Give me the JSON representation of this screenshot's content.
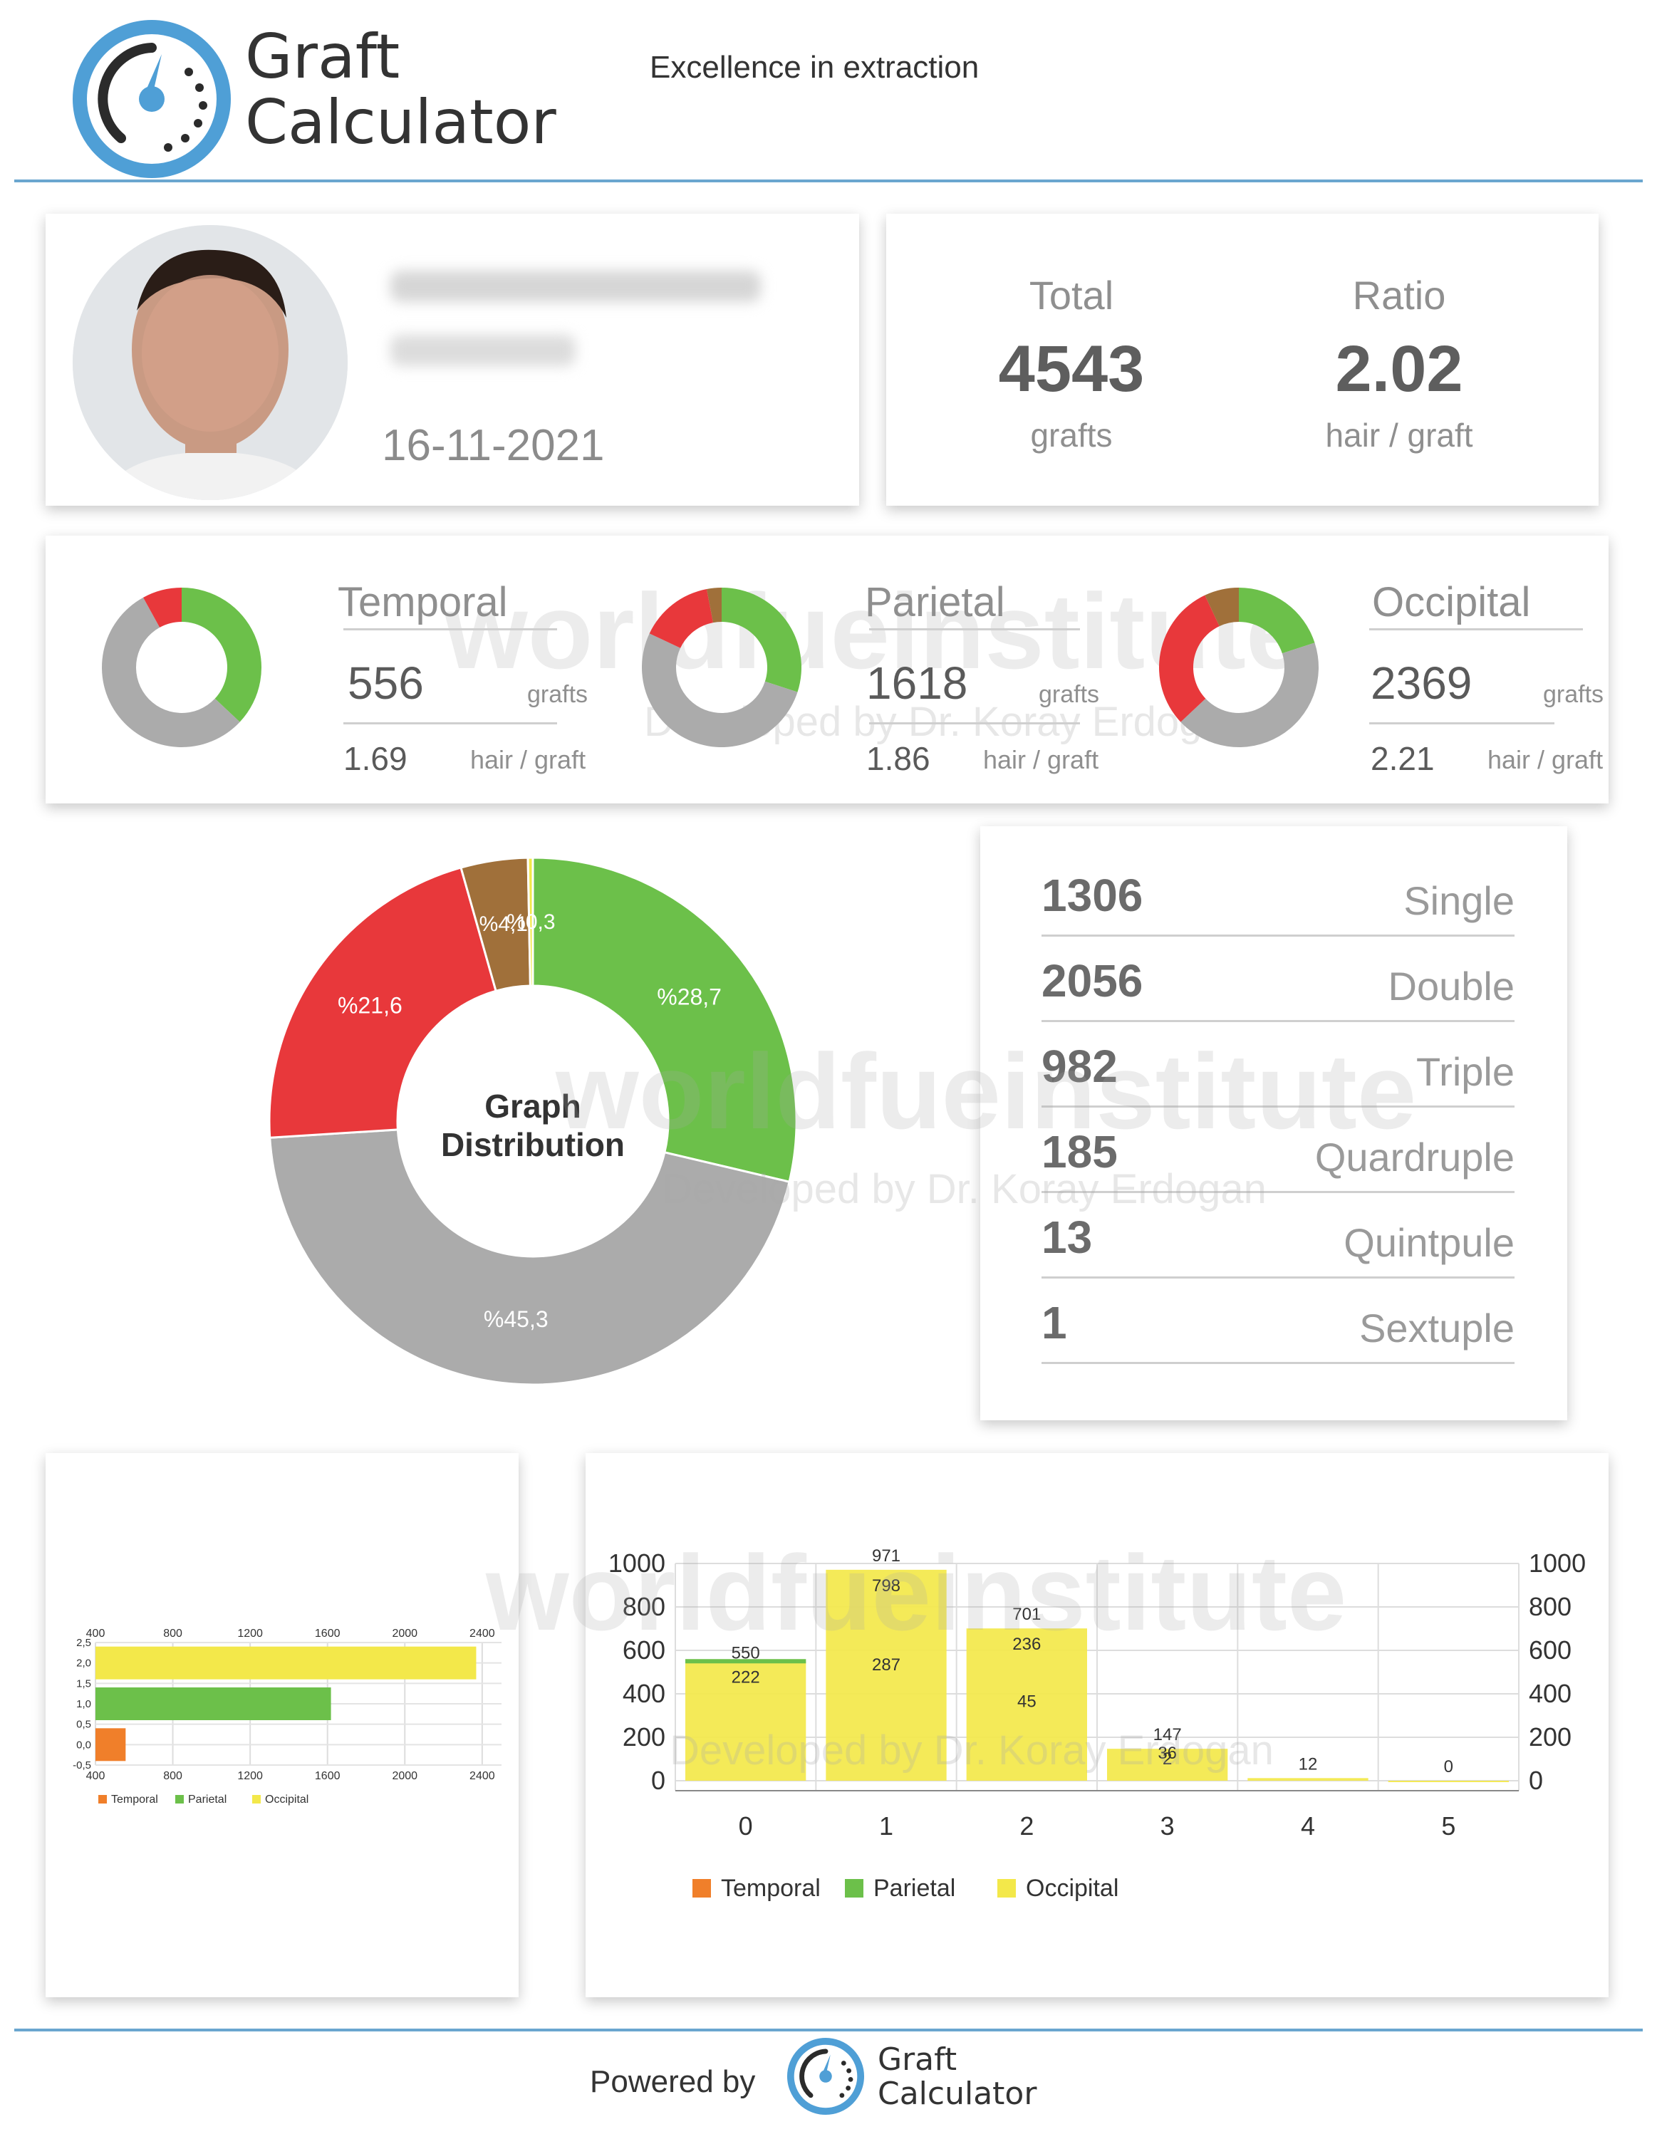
{
  "header": {
    "brand_line1": "Graft",
    "brand_line2": "Calculator",
    "tagline": "Excellence in extraction"
  },
  "patient": {
    "date": "16-11-2021"
  },
  "totals": {
    "total_label": "Total",
    "total_value": "4543",
    "total_unit": "grafts",
    "ratio_label": "Ratio",
    "ratio_value": "2.02",
    "ratio_unit": "hair / graft"
  },
  "regions": [
    {
      "name": "Temporal",
      "grafts": "556",
      "grafts_unit": "grafts",
      "ratio": "1.69",
      "ratio_unit": "hair / graft",
      "donut": [
        {
          "color": "#6cc04a",
          "value": 37
        },
        {
          "color": "#ababab",
          "value": 55
        },
        {
          "color": "#e8383b",
          "value": 8
        }
      ]
    },
    {
      "name": "Parietal",
      "grafts": "1618",
      "grafts_unit": "grafts",
      "ratio": "1.86",
      "ratio_unit": "hair / graft",
      "donut": [
        {
          "color": "#6cc04a",
          "value": 30
        },
        {
          "color": "#ababab",
          "value": 52
        },
        {
          "color": "#e8383b",
          "value": 15
        },
        {
          "color": "#a0703a",
          "value": 3
        }
      ]
    },
    {
      "name": "Occipital",
      "grafts": "2369",
      "grafts_unit": "grafts",
      "ratio": "2.21",
      "ratio_unit": "hair / graft",
      "donut": [
        {
          "color": "#6cc04a",
          "value": 20
        },
        {
          "color": "#ababab",
          "value": 43
        },
        {
          "color": "#e8383b",
          "value": 30
        },
        {
          "color": "#a0703a",
          "value": 7
        }
      ]
    }
  ],
  "distribution": {
    "center_line1": "Graph",
    "center_line2": "Distribution",
    "segments": [
      {
        "label": "%28,7",
        "value": 28.7,
        "color": "#6cc04a"
      },
      {
        "label": "%45,3",
        "value": 45.3,
        "color": "#ababab"
      },
      {
        "label": "%21,6",
        "value": 21.6,
        "color": "#e8383b"
      },
      {
        "label": "%4,1",
        "value": 4.1,
        "color": "#a0703a"
      },
      {
        "label": "%0,3",
        "value": 0.3,
        "color": "#f3e84a"
      }
    ]
  },
  "graft_types": [
    {
      "count": "1306",
      "label": "Single"
    },
    {
      "count": "2056",
      "label": "Double"
    },
    {
      "count": "982",
      "label": "Triple"
    },
    {
      "count": "185",
      "label": "Quardruple"
    },
    {
      "count": "13",
      "label": "Quintpule"
    },
    {
      "count": "1",
      "label": "Sextuple"
    }
  ],
  "watermark": {
    "main": "worldfueinstitute",
    "sub": "Developed by Dr. Koray Erdogan"
  },
  "footer": {
    "powered_by": "Powered by",
    "brand_line1": "Graft",
    "brand_line2": "Calculator"
  },
  "chart_data": [
    {
      "type": "bar",
      "orientation": "horizontal",
      "x_ticks": [
        "400",
        "800",
        "1200",
        "1600",
        "2000",
        "2400"
      ],
      "y_ticks": [
        "2,5",
        "2,0",
        "1,5",
        "1,0",
        "0,5",
        "0,0",
        "-0,5"
      ],
      "xlim": [
        400,
        2500
      ],
      "ylim": [
        -0.5,
        2.5
      ],
      "series": [
        {
          "name": "Temporal",
          "value": 556,
          "y": 0,
          "color": "#f07f2a"
        },
        {
          "name": "Parietal",
          "value": 1618,
          "y": 1,
          "color": "#6cc04a"
        },
        {
          "name": "Occipital",
          "value": 2369,
          "y": 2,
          "color": "#f3e84a"
        }
      ]
    },
    {
      "type": "bar",
      "categories": [
        "0",
        "1",
        "2",
        "3",
        "4",
        "5"
      ],
      "ylim": [
        0,
        1000
      ],
      "y_ticks": [
        "1000",
        "800",
        "600",
        "400",
        "200",
        "0"
      ],
      "series": [
        {
          "name": "Temporal",
          "color": "#f07f2a",
          "values": [
            null,
            null,
            null,
            null,
            null,
            null
          ]
        },
        {
          "name": "Parietal",
          "color": "#6cc04a",
          "values": [
            550,
            null,
            null,
            null,
            null,
            null
          ]
        },
        {
          "name": "Occipital",
          "color": "#f3e84a",
          "values": [
            550,
            971,
            701,
            147,
            12,
            0
          ]
        }
      ],
      "data_labels": [
        [
          "550",
          "222"
        ],
        [
          "971",
          "798",
          "287"
        ],
        [
          "701",
          "236",
          "45"
        ],
        [
          "147",
          "36",
          "2"
        ],
        [
          "12"
        ],
        [
          "0"
        ]
      ]
    }
  ]
}
